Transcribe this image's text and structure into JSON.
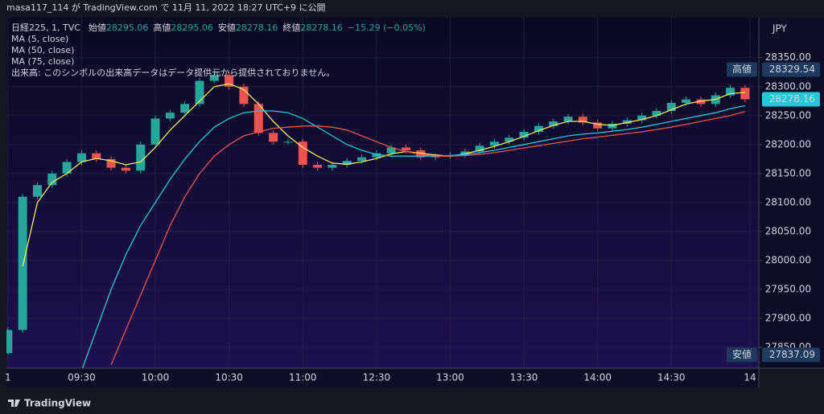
{
  "published": "masa117_114 が TradingView.com で 11月 11, 2022 18:27 UTC+9 に公開",
  "footer": "TradingView",
  "chart_data": {
    "type": "candlestick",
    "header": {
      "symbol": "日経225, 1, TVC",
      "ohlc": [
        {
          "label": "始値",
          "value": "28295.06"
        },
        {
          "label": "高値",
          "value": "28295.06"
        },
        {
          "label": "安値",
          "value": "28278.16"
        },
        {
          "label": "終値",
          "value": "28278.16"
        }
      ],
      "change": "−15.29 (−0.05%)"
    },
    "volume_note": "出来高: このシンボルの出来高データはデータ提供元から提供されておりません。",
    "currency": "JPY",
    "up_color": "#26a69a",
    "down_color": "#ef5350",
    "x": [
      0,
      6,
      12,
      18,
      24,
      30,
      36,
      42,
      48,
      54,
      60,
      66,
      72,
      78,
      84,
      90,
      96,
      102,
      108,
      114,
      120,
      126,
      132,
      138,
      144,
      150,
      156,
      162,
      168,
      174,
      180,
      186,
      192,
      198,
      204,
      210,
      216,
      222,
      228,
      234,
      240,
      246,
      252,
      258,
      264,
      270,
      276,
      282,
      288,
      294,
      300
    ],
    "open": [
      27840,
      27880,
      28110,
      28130,
      28150,
      28170,
      28185,
      28175,
      28160,
      28155,
      28200,
      28245,
      28255,
      28270,
      28310,
      28320,
      28300,
      28270,
      28220,
      28205,
      28205,
      28165,
      28160,
      28165,
      28172,
      28178,
      28185,
      28195,
      28190,
      28178,
      28180,
      28182,
      28188,
      28198,
      28205,
      28212,
      28222,
      28232,
      28240,
      28248,
      28238,
      28228,
      28236,
      28242,
      28250,
      28258,
      28272,
      28278,
      28270,
      28285,
      28298
    ],
    "high": [
      27885,
      28115,
      28135,
      28155,
      28175,
      28190,
      28190,
      28180,
      28165,
      28205,
      28250,
      28260,
      28275,
      28315,
      28329.54,
      28325,
      28305,
      28275,
      28225,
      28210,
      28210,
      28170,
      28170,
      28177,
      28183,
      28190,
      28200,
      28200,
      28195,
      28185,
      28187,
      28193,
      28203,
      28210,
      28217,
      28227,
      28237,
      28245,
      28253,
      28253,
      28243,
      28241,
      28247,
      28255,
      28263,
      28277,
      28283,
      28283,
      28290,
      28303,
      28303
    ],
    "low": [
      27837.09,
      27875,
      28105,
      28125,
      28145,
      28165,
      28170,
      28155,
      28150,
      28150,
      28195,
      28240,
      28250,
      28265,
      28305,
      28295,
      28265,
      28215,
      28200,
      28200,
      28160,
      28155,
      28155,
      28160,
      28167,
      28173,
      28180,
      28185,
      28173,
      28173,
      28175,
      28177,
      28183,
      28193,
      28200,
      28207,
      28217,
      28227,
      28235,
      28233,
      28223,
      28223,
      28231,
      28237,
      28245,
      28253,
      28267,
      28265,
      28265,
      28280,
      28273
    ],
    "close": [
      27880,
      28110,
      28130,
      28150,
      28170,
      28185,
      28175,
      28160,
      28155,
      28200,
      28245,
      28255,
      28270,
      28310,
      28320,
      28300,
      28270,
      28220,
      28205,
      28205,
      28165,
      28160,
      28165,
      28172,
      28178,
      28185,
      28195,
      28190,
      28178,
      28180,
      28182,
      28188,
      28198,
      28205,
      28212,
      28222,
      28232,
      28240,
      28248,
      28238,
      28228,
      28236,
      28242,
      28250,
      28258,
      28272,
      28278,
      28270,
      28285,
      28298,
      28278.16
    ],
    "series": [
      {
        "name": "MA (5, close)",
        "color": "#f5e663",
        "values": [
          null,
          27990,
          28100,
          28135,
          28150,
          28170,
          28176,
          28172,
          28165,
          28170,
          28195,
          28225,
          28250,
          28275,
          28300,
          28305,
          28295,
          28270,
          28240,
          28215,
          28195,
          28180,
          28168,
          28166,
          28170,
          28176,
          28184,
          28188,
          28185,
          28182,
          28180,
          28184,
          28190,
          28197,
          28205,
          28214,
          28224,
          28233,
          28240,
          28240,
          28235,
          28233,
          28238,
          28243,
          28250,
          28260,
          28270,
          28275,
          28278,
          28288,
          28290
        ]
      },
      {
        "name": "MA (50, close)",
        "color": "#26c6da",
        "values": [
          null,
          null,
          null,
          null,
          null,
          27810,
          27880,
          27950,
          28010,
          28060,
          28100,
          28140,
          28175,
          28205,
          28230,
          28245,
          28255,
          28258,
          28258,
          28255,
          28245,
          28230,
          28215,
          28200,
          28190,
          28183,
          28180,
          28180,
          28180,
          28180,
          28181,
          28183,
          28186,
          28190,
          28195,
          28200,
          28205,
          28210,
          28215,
          28218,
          28220,
          28223,
          28226,
          28230,
          28235,
          28240,
          28245,
          28250,
          28255,
          28262,
          28267
        ]
      },
      {
        "name": "MA (75, close)",
        "color": "#ef5350",
        "values": [
          null,
          null,
          null,
          null,
          null,
          null,
          null,
          27820,
          27880,
          27940,
          28000,
          28060,
          28110,
          28150,
          28180,
          28200,
          28215,
          28222,
          28228,
          28230,
          28232,
          28232,
          28230,
          28225,
          28215,
          28205,
          28195,
          28188,
          28183,
          28180,
          28180,
          28181,
          28183,
          28186,
          28190,
          28194,
          28198,
          28202,
          28206,
          28210,
          28213,
          28216,
          28219,
          28222,
          28226,
          28230,
          28235,
          28240,
          28245,
          28250,
          28257
        ]
      }
    ],
    "markers": {
      "high": {
        "label": "高値",
        "value": 28329.54
      },
      "last": {
        "value": 28278.16
      },
      "low": {
        "label": "安値",
        "value": 27837.09
      }
    },
    "xlim": [
      -0.6,
      305.6
    ],
    "xticks": [
      {
        "value": 0,
        "label": "1"
      },
      {
        "value": 30,
        "label": "09:30"
      },
      {
        "value": 60,
        "label": "10:00"
      },
      {
        "value": 90,
        "label": "10:30"
      },
      {
        "value": 120,
        "label": "11:00"
      },
      {
        "value": 150,
        "label": "12:30"
      },
      {
        "value": 180,
        "label": "13:00"
      },
      {
        "value": 210,
        "label": "13:30"
      },
      {
        "value": 240,
        "label": "14:00"
      },
      {
        "value": 270,
        "label": "14:30"
      },
      {
        "value": 302,
        "label": "14"
      }
    ],
    "ylim": [
      27814,
      28419
    ],
    "yticks": [
      {
        "value": 28350,
        "label": "28350.00"
      },
      {
        "value": 28300,
        "label": "28300.00"
      },
      {
        "value": 28250,
        "label": "28250.00"
      },
      {
        "value": 28200,
        "label": "28200.00"
      },
      {
        "value": 28150,
        "label": "28150.00"
      },
      {
        "value": 28100,
        "label": "28100.00"
      },
      {
        "value": 28050,
        "label": "28050.00"
      },
      {
        "value": 28000,
        "label": "28000.00"
      },
      {
        "value": 27950,
        "label": "27950.00"
      },
      {
        "value": 27900,
        "label": "27900.00"
      },
      {
        "value": 27850,
        "label": "27850.00"
      }
    ],
    "grid": true
  }
}
